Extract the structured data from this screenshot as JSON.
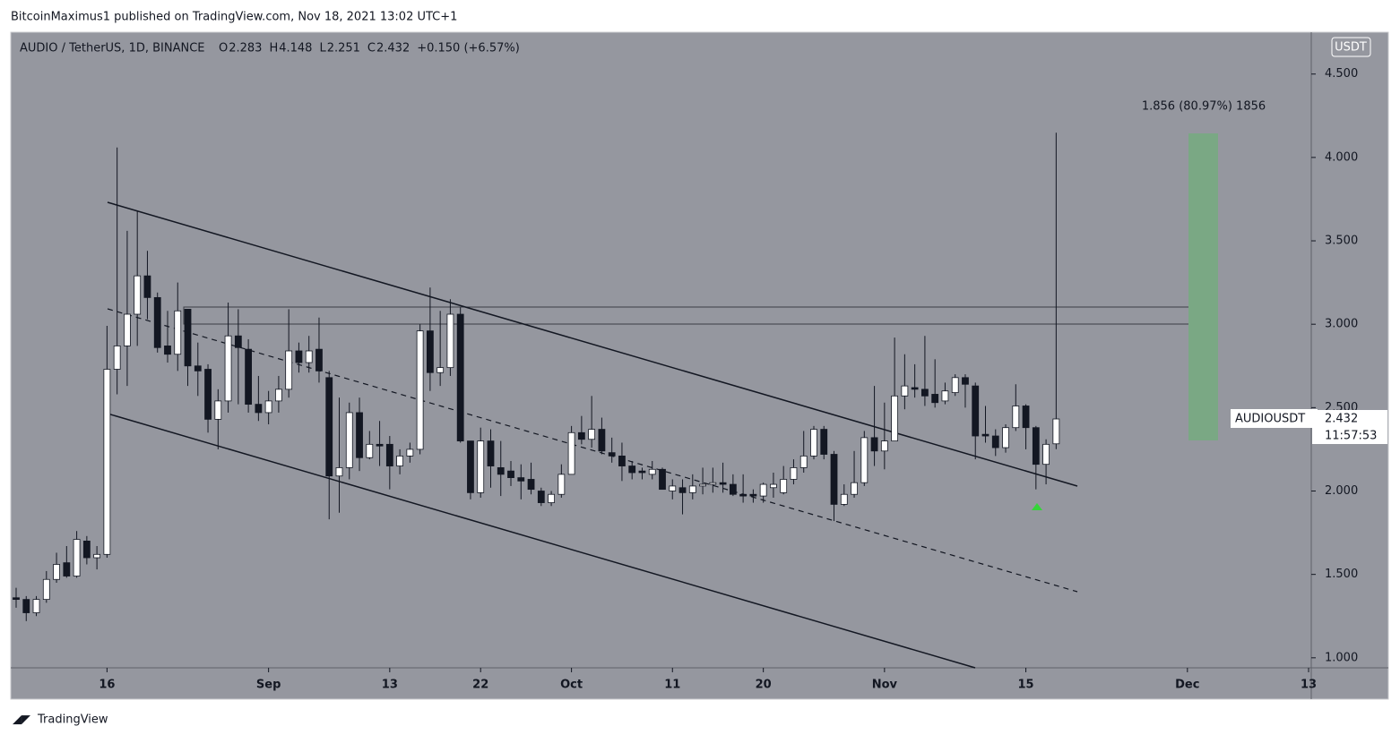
{
  "header": {
    "publisher": "BitcoinMaximus1 published on TradingView.com, Nov 18, 2021 13:02 UTC+1",
    "symbol": "AUDIO / TetherUS, 1D, BINANCE",
    "ohlc": [
      {
        "key": "O",
        "text": "2.283"
      },
      {
        "key": "H",
        "text": "4.148"
      },
      {
        "key": "L",
        "text": "2.251"
      },
      {
        "key": "C",
        "text": "2.432"
      }
    ],
    "change": "+0.150 (+6.57%)"
  },
  "chart_data": {
    "type": "candlestick",
    "currency": "USDT",
    "x": [
      "08-07",
      "08-08",
      "08-09",
      "08-10",
      "08-11",
      "08-12",
      "08-13",
      "08-14",
      "08-15",
      "08-16",
      "08-17",
      "08-18",
      "08-19",
      "08-20",
      "08-21",
      "08-22",
      "08-23",
      "08-24",
      "08-25",
      "08-26",
      "08-27",
      "08-28",
      "08-29",
      "08-30",
      "08-31",
      "09-01",
      "09-02",
      "09-03",
      "09-04",
      "09-05",
      "09-06",
      "09-07",
      "09-08",
      "09-09",
      "09-10",
      "09-11",
      "09-12",
      "09-13",
      "09-14",
      "09-15",
      "09-16",
      "09-17",
      "09-18",
      "09-19",
      "09-20",
      "09-21",
      "09-22",
      "09-23",
      "09-24",
      "09-25",
      "09-26",
      "09-27",
      "09-28",
      "09-29",
      "09-30",
      "10-01",
      "10-02",
      "10-03",
      "10-04",
      "10-05",
      "10-06",
      "10-07",
      "10-08",
      "10-09",
      "10-10",
      "10-11",
      "10-12",
      "10-13",
      "10-14",
      "10-15",
      "10-16",
      "10-17",
      "10-18",
      "10-19",
      "10-20",
      "10-21",
      "10-22",
      "10-23",
      "10-24",
      "10-25",
      "10-26",
      "10-27",
      "10-28",
      "10-29",
      "10-30",
      "10-31",
      "11-01",
      "11-02",
      "11-03",
      "11-04",
      "11-05",
      "11-06",
      "11-07",
      "11-08",
      "11-09",
      "11-10",
      "11-11",
      "11-12",
      "11-13",
      "11-14",
      "11-15",
      "11-16",
      "11-17",
      "11-18"
    ],
    "open": [
      1.36,
      1.35,
      1.27,
      1.35,
      1.47,
      1.57,
      1.49,
      1.7,
      1.6,
      1.62,
      2.73,
      2.87,
      3.06,
      3.29,
      3.16,
      2.87,
      2.82,
      3.09,
      2.75,
      2.73,
      2.43,
      2.54,
      2.93,
      2.85,
      2.52,
      2.47,
      2.54,
      2.61,
      2.84,
      2.77,
      2.85,
      2.68,
      2.09,
      2.14,
      2.47,
      2.2,
      2.28,
      2.28,
      2.15,
      2.21,
      2.25,
      2.96,
      2.71,
      2.74,
      3.06,
      2.3,
      1.99,
      2.3,
      2.14,
      2.12,
      2.08,
      2.07,
      2.0,
      1.93,
      1.98,
      2.1,
      2.35,
      2.31,
      2.37,
      2.23,
      2.21,
      2.15,
      2.12,
      2.1,
      2.13,
      2.0,
      2.02,
      1.99,
      2.03,
      2.04,
      2.05,
      2.04,
      1.98,
      1.98,
      1.97,
      2.02,
      1.99,
      2.07,
      2.14,
      2.21,
      2.37,
      2.22,
      1.92,
      1.98,
      2.05,
      2.32,
      2.24,
      2.3,
      2.57,
      2.62,
      2.61,
      2.58,
      2.54,
      2.59,
      2.68,
      2.63,
      2.34,
      2.33,
      2.26,
      2.38,
      2.51,
      2.38,
      2.16,
      2.283
    ],
    "high": [
      1.42,
      1.37,
      1.37,
      1.52,
      1.63,
      1.67,
      1.76,
      1.73,
      1.67,
      2.99,
      4.06,
      3.56,
      3.68,
      3.44,
      3.19,
      3.08,
      3.25,
      3.09,
      2.89,
      2.76,
      2.61,
      3.13,
      3.09,
      2.91,
      2.69,
      2.6,
      2.69,
      3.09,
      2.89,
      2.93,
      3.04,
      2.72,
      2.56,
      2.53,
      2.56,
      2.36,
      2.42,
      2.33,
      2.25,
      2.29,
      3.0,
      3.22,
      3.08,
      3.15,
      3.1,
      2.3,
      2.38,
      2.37,
      2.3,
      2.18,
      2.16,
      2.17,
      2.02,
      2.0,
      2.16,
      2.39,
      2.45,
      2.57,
      2.44,
      2.32,
      2.29,
      2.18,
      2.14,
      2.18,
      2.14,
      2.07,
      2.07,
      2.1,
      2.14,
      2.14,
      2.17,
      2.1,
      2.1,
      2.01,
      2.05,
      2.11,
      2.15,
      2.19,
      2.36,
      2.39,
      2.39,
      2.24,
      2.04,
      2.24,
      2.36,
      2.63,
      2.53,
      2.92,
      2.82,
      2.76,
      2.93,
      2.79,
      2.65,
      2.7,
      2.7,
      2.65,
      2.51,
      2.37,
      2.4,
      2.64,
      2.52,
      2.39,
      2.31,
      4.148
    ],
    "low": [
      1.3,
      1.22,
      1.25,
      1.33,
      1.45,
      1.48,
      1.48,
      1.56,
      1.53,
      1.6,
      2.58,
      2.63,
      2.87,
      3.03,
      2.83,
      2.77,
      2.72,
      2.63,
      2.57,
      2.35,
      2.25,
      2.47,
      2.52,
      2.47,
      2.42,
      2.4,
      2.47,
      2.56,
      2.71,
      2.71,
      2.65,
      1.83,
      1.87,
      2.07,
      2.12,
      2.19,
      2.15,
      2.01,
      2.1,
      2.17,
      2.22,
      2.6,
      2.63,
      2.69,
      2.29,
      1.95,
      1.96,
      2.02,
      1.97,
      2.03,
      1.95,
      1.98,
      1.91,
      1.91,
      1.96,
      2.1,
      2.28,
      2.26,
      2.22,
      2.17,
      2.06,
      2.07,
      2.07,
      2.07,
      2.01,
      1.95,
      1.86,
      1.95,
      1.98,
      1.99,
      1.99,
      1.97,
      1.93,
      1.93,
      1.93,
      1.96,
      1.98,
      2.04,
      2.11,
      2.19,
      2.19,
      1.82,
      1.91,
      1.96,
      2.03,
      2.15,
      2.13,
      2.3,
      2.49,
      2.56,
      2.51,
      2.5,
      2.52,
      2.57,
      2.5,
      2.19,
      2.29,
      2.21,
      2.23,
      2.36,
      2.25,
      2.01,
      2.04,
      2.251
    ],
    "close": [
      1.35,
      1.27,
      1.35,
      1.47,
      1.56,
      1.49,
      1.71,
      1.6,
      1.62,
      2.73,
      2.87,
      3.06,
      3.29,
      3.16,
      2.86,
      2.82,
      3.08,
      2.75,
      2.72,
      2.43,
      2.54,
      2.93,
      2.86,
      2.52,
      2.47,
      2.54,
      2.61,
      2.84,
      2.77,
      2.84,
      2.72,
      2.09,
      2.14,
      2.47,
      2.2,
      2.28,
      2.27,
      2.15,
      2.21,
      2.25,
      2.96,
      2.71,
      2.74,
      3.06,
      2.3,
      1.99,
      2.3,
      2.15,
      2.1,
      2.08,
      2.06,
      2.01,
      1.93,
      1.98,
      2.1,
      2.35,
      2.31,
      2.37,
      2.24,
      2.21,
      2.15,
      2.11,
      2.11,
      2.13,
      2.01,
      2.03,
      1.99,
      2.03,
      2.04,
      2.05,
      2.04,
      1.98,
      1.97,
      1.97,
      2.04,
      2.04,
      2.07,
      2.14,
      2.21,
      2.37,
      2.22,
      1.92,
      1.98,
      2.05,
      2.32,
      2.24,
      2.3,
      2.57,
      2.63,
      2.61,
      2.57,
      2.53,
      2.6,
      2.68,
      2.64,
      2.33,
      2.33,
      2.26,
      2.38,
      2.51,
      2.38,
      2.16,
      2.28,
      2.432
    ],
    "up_color": "#ffffff",
    "down_color": "#131722",
    "xlim": [
      "08-07",
      "12-13"
    ],
    "xticks": [
      {
        "value": "08-16",
        "label": "16"
      },
      {
        "value": "09-01",
        "label": "Sep"
      },
      {
        "value": "09-13",
        "label": "13"
      },
      {
        "value": "09-22",
        "label": "22"
      },
      {
        "value": "10-01",
        "label": "Oct"
      },
      {
        "value": "10-11",
        "label": "11"
      },
      {
        "value": "10-20",
        "label": "20"
      },
      {
        "value": "11-01",
        "label": "Nov"
      },
      {
        "value": "11-15",
        "label": "15"
      },
      {
        "value": "12-01",
        "label": "Dec"
      },
      {
        "value": "12-13",
        "label": "13"
      }
    ],
    "ylim": [
      0.94,
      4.74
    ],
    "yticks": [
      {
        "value": 1,
        "label": "1.000"
      },
      {
        "value": 1.5,
        "label": "1.500"
      },
      {
        "value": 2,
        "label": "2.000"
      },
      {
        "value": 2.5,
        "label": "2.500"
      },
      {
        "value": 3,
        "label": "3.000"
      },
      {
        "value": 3.5,
        "label": "3.500"
      },
      {
        "value": 4,
        "label": "4.000"
      },
      {
        "value": 4.5,
        "label": "4.500"
      }
    ],
    "annotation": "1.856 (80.97%) 1856",
    "price_tag": {
      "symbol": "AUDIOUSDT",
      "price": "2.432",
      "countdown": "11:57:53"
    }
  },
  "footer": {
    "brand": "TradingView"
  }
}
